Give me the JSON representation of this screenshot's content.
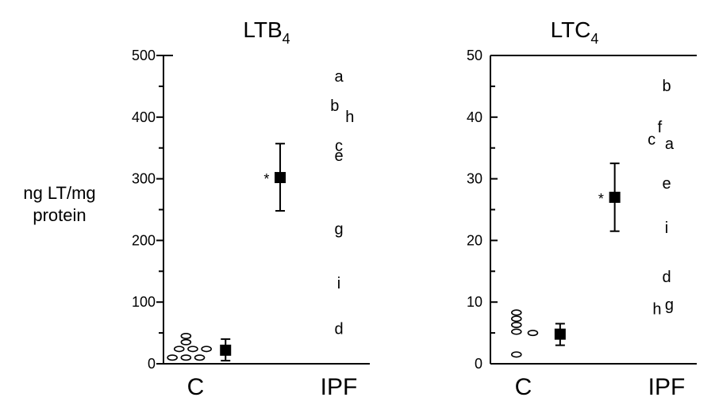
{
  "shared_ylabel": [
    "ng LT/mg",
    "protein"
  ],
  "chart_data": [
    {
      "type": "scatter",
      "title": "LTB",
      "title_subscript": "4",
      "ylim": [
        0,
        500
      ],
      "yticks": [
        "0",
        "100",
        "200",
        "300",
        "400",
        "500"
      ],
      "categories": [
        "C",
        "IPF"
      ],
      "control_points": [
        {
          "x": -0.22,
          "y": 10
        },
        {
          "x": -0.12,
          "y": 10
        },
        {
          "x": -0.02,
          "y": 10
        },
        {
          "x": -0.17,
          "y": 24
        },
        {
          "x": -0.07,
          "y": 24
        },
        {
          "x": 0.03,
          "y": 24
        },
        {
          "x": -0.12,
          "y": 35
        },
        {
          "x": -0.12,
          "y": 45
        }
      ],
      "labeled_points": [
        {
          "label": "a",
          "x": 1.0,
          "y": 465
        },
        {
          "label": "b",
          "x": 0.97,
          "y": 418
        },
        {
          "label": "h",
          "x": 1.08,
          "y": 400
        },
        {
          "label": "c",
          "x": 1.0,
          "y": 353
        },
        {
          "label": "e",
          "x": 1.0,
          "y": 337
        },
        {
          "label": "g",
          "x": 1.0,
          "y": 218
        },
        {
          "label": "i",
          "x": 1.0,
          "y": 130
        },
        {
          "label": "d",
          "x": 1.0,
          "y": 56
        }
      ],
      "summary": [
        {
          "x": 0.17,
          "mean": 22,
          "lo": 5,
          "hi": 40
        },
        {
          "x": 0.57,
          "mean": 302,
          "lo": 248,
          "hi": 357
        }
      ],
      "significance_marker": {
        "text": "*",
        "x": 0.47,
        "y": 302
      }
    },
    {
      "type": "scatter",
      "title": "LTC",
      "title_subscript": "4",
      "ylim": [
        0,
        50
      ],
      "yticks": [
        "0",
        "10",
        "20",
        "30",
        "40",
        "50"
      ],
      "categories": [
        "C",
        "IPF"
      ],
      "control_points": [
        {
          "x": -0.1,
          "y": 1.5
        },
        {
          "x": 0.02,
          "y": 5
        },
        {
          "x": -0.1,
          "y": 5.2
        },
        {
          "x": -0.1,
          "y": 6.3
        },
        {
          "x": -0.1,
          "y": 7.3
        },
        {
          "x": -0.1,
          "y": 8.3
        }
      ],
      "labeled_points": [
        {
          "label": "b",
          "x": 1.0,
          "y": 45
        },
        {
          "label": "c",
          "x": 0.89,
          "y": 36.3
        },
        {
          "label": "f",
          "x": 0.95,
          "y": 38.3
        },
        {
          "label": "a",
          "x": 1.02,
          "y": 35.6
        },
        {
          "label": "e",
          "x": 1.0,
          "y": 29.2
        },
        {
          "label": "i",
          "x": 1.0,
          "y": 22
        },
        {
          "label": "d",
          "x": 1.0,
          "y": 14
        },
        {
          "label": "h",
          "x": 0.93,
          "y": 8.8
        },
        {
          "label": "g",
          "x": 1.02,
          "y": 9.5
        }
      ],
      "summary": [
        {
          "x": 0.22,
          "mean": 4.8,
          "lo": 3,
          "hi": 6.5
        },
        {
          "x": 0.62,
          "mean": 27,
          "lo": 21.5,
          "hi": 32.5
        }
      ],
      "significance_marker": {
        "text": "*",
        "x": 0.52,
        "y": 27
      }
    }
  ]
}
